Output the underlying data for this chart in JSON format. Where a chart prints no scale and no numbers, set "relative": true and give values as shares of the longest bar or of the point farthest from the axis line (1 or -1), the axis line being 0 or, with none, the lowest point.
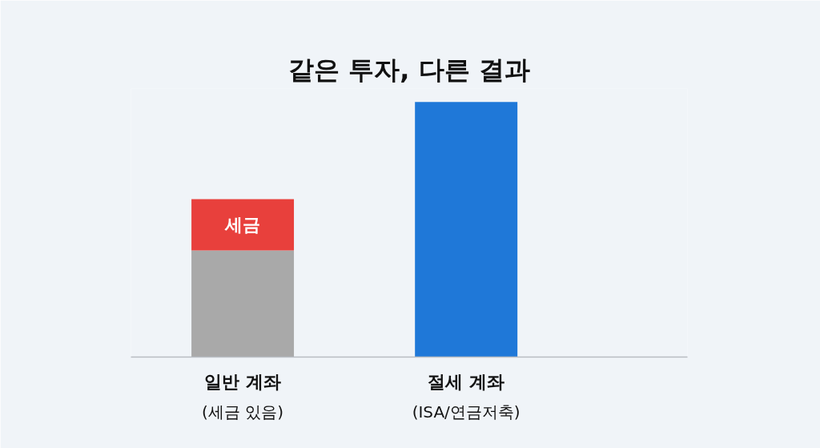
{
  "chart_data": {
    "type": "bar",
    "title": "같은 투자, 다른 결과",
    "relative": true,
    "stacked": true,
    "categories": [
      "일반 계좌\n(세금 있음)",
      "절세 계좌\n(ISA/연금저축)"
    ],
    "series": [
      {
        "colors": [
          "#a9a9a9",
          "#1f78d8"
        ],
        "values": [
          0.418,
          1
        ]
      },
      {
        "name": "세금",
        "color": "#e8403c",
        "values": [
          0.201,
          null
        ]
      }
    ],
    "grid": false
  }
}
